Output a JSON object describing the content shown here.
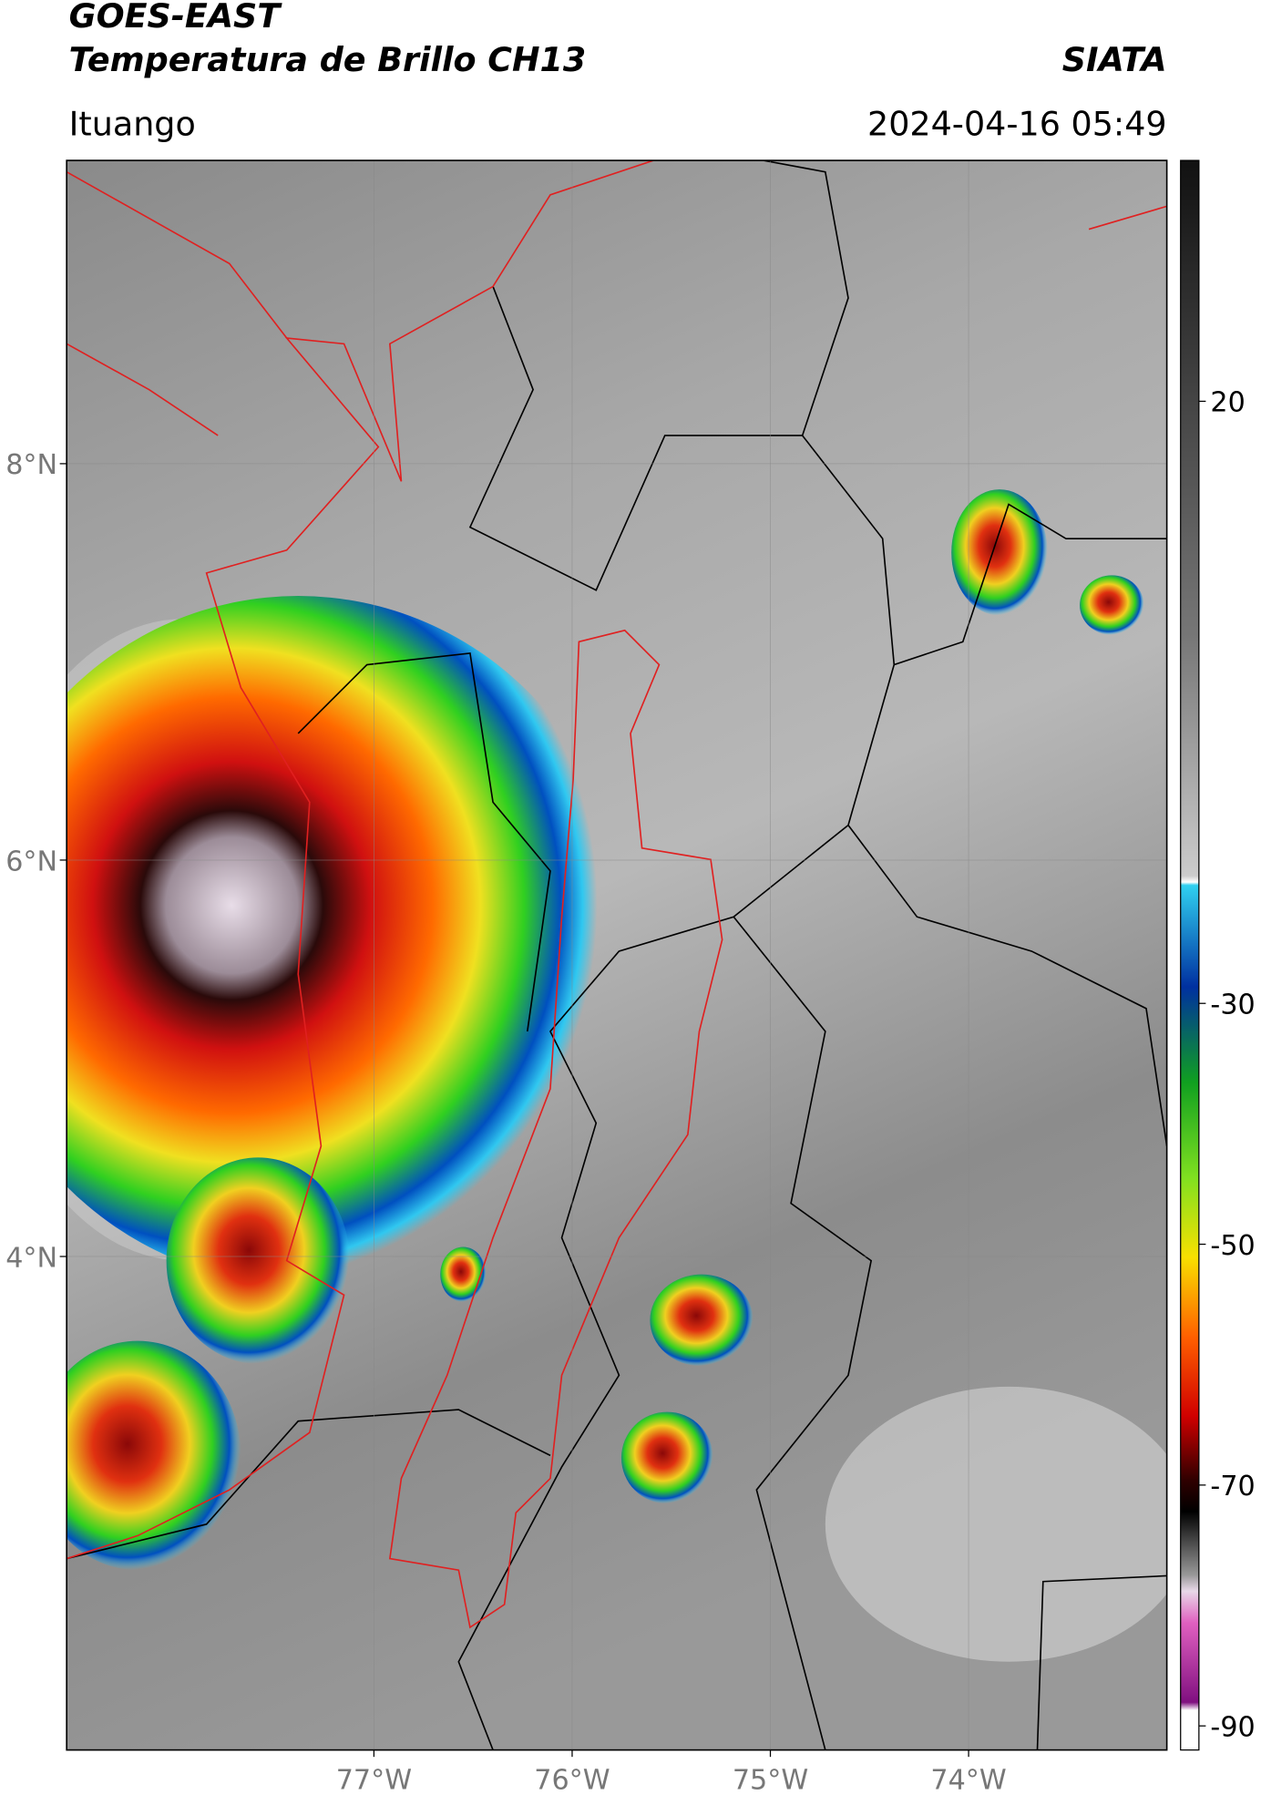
{
  "header": {
    "satellite": "GOES-EAST",
    "product": "Temperatura de Brillo CH13",
    "source": "SIATA",
    "region": "Ituango",
    "datetime": "2024-04-16 05:49"
  },
  "map": {
    "xlim": [
      -78.55,
      -73.0
    ],
    "ylim": [
      1.51,
      9.53
    ],
    "xticks": [
      {
        "value": -77,
        "label": "77°W"
      },
      {
        "value": -76,
        "label": "76°W"
      },
      {
        "value": -75,
        "label": "75°W"
      },
      {
        "value": -74,
        "label": "74°W"
      }
    ],
    "yticks": [
      {
        "value": 8,
        "label": "8°N"
      },
      {
        "value": 6,
        "label": "6°N"
      },
      {
        "value": 4,
        "label": "4°N"
      }
    ],
    "grid": true
  },
  "colorbar": {
    "ylim": [
      -92,
      40
    ],
    "yticks": [
      20,
      -30,
      -50,
      -70,
      -90
    ]
  }
}
